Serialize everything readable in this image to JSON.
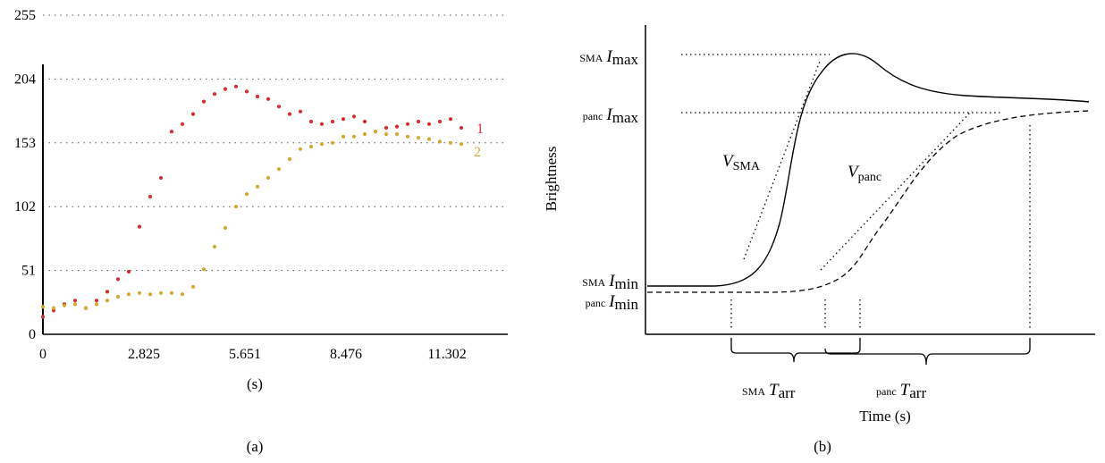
{
  "panel_a": {
    "caption": "(a)",
    "xlabel": "(s)",
    "series_labels": [
      "1",
      "2"
    ]
  },
  "panel_b": {
    "caption": "(b)",
    "xlabel": "Time (s)",
    "ylabel": "Brightness",
    "labels": {
      "sma_imax_sub": "SMA",
      "sma_imax_main": "I",
      "sma_imax_idx": "max",
      "panc_imax_sub": "panc",
      "panc_imax_main": "I",
      "panc_imax_idx": "max",
      "sma_imin_sub": "SMA",
      "sma_imin_main": "I",
      "sma_imin_idx": "min",
      "panc_imin_sub": "panc",
      "panc_imin_main": "I",
      "panc_imin_idx": "min",
      "v_sma_main": "V",
      "v_sma_idx": "SMA",
      "v_panc_main": "V",
      "v_panc_idx": "panc",
      "sma_tarr_sub": "SMA",
      "sma_tarr_main": "T",
      "sma_tarr_idx": "arr",
      "panc_tarr_sub": "panc",
      "panc_tarr_main": "T",
      "panc_tarr_idx": "arr"
    }
  },
  "chart_data": [
    {
      "type": "scatter",
      "title": "",
      "xlabel": "(s)",
      "ylabel": "",
      "xlim": [
        0,
        13.0
      ],
      "ylim": [
        0,
        255
      ],
      "xticks": [
        0,
        2.825,
        5.651,
        8.476,
        11.302
      ],
      "xtick_labels": [
        "0",
        "2.825",
        "5.651",
        "8.476",
        "11.302"
      ],
      "yticks": [
        0,
        51,
        102,
        153,
        204,
        255
      ],
      "ytick_labels": [
        "0",
        "51",
        "102",
        "153",
        "204",
        "255"
      ],
      "grid": "horizontal dotted",
      "colors": {
        "1": "#d32f2f",
        "2": "#d4a933"
      },
      "series": [
        {
          "name": "1",
          "x": [
            0,
            0.3,
            0.6,
            0.9,
            1.2,
            1.5,
            1.8,
            2.1,
            2.4,
            2.7,
            3.0,
            3.3,
            3.6,
            3.9,
            4.2,
            4.5,
            4.8,
            5.1,
            5.4,
            5.7,
            6.0,
            6.3,
            6.6,
            6.9,
            7.2,
            7.5,
            7.8,
            8.1,
            8.4,
            8.7,
            9.0,
            9.3,
            9.6,
            9.9,
            10.2,
            10.5,
            10.8,
            11.1,
            11.4,
            11.7
          ],
          "y": [
            14,
            19,
            24,
            27,
            21,
            27,
            34,
            44,
            50,
            86,
            110,
            125,
            162,
            168,
            176,
            186,
            192,
            196,
            198,
            194,
            190,
            188,
            182,
            176,
            178,
            170,
            168,
            170,
            172,
            174,
            170,
            162,
            165,
            166,
            168,
            170,
            168,
            170,
            172,
            165
          ]
        },
        {
          "name": "2",
          "x": [
            0,
            0.3,
            0.6,
            0.9,
            1.2,
            1.5,
            1.8,
            2.1,
            2.4,
            2.7,
            3.0,
            3.3,
            3.6,
            3.9,
            4.2,
            4.5,
            4.8,
            5.1,
            5.4,
            5.7,
            6.0,
            6.3,
            6.6,
            6.9,
            7.2,
            7.5,
            7.8,
            8.1,
            8.4,
            8.7,
            9.0,
            9.3,
            9.6,
            9.9,
            10.2,
            10.5,
            10.8,
            11.1,
            11.4,
            11.7
          ],
          "y": [
            22,
            21,
            23,
            24,
            21,
            24,
            27,
            30,
            32,
            33,
            32,
            33,
            33,
            32,
            38,
            52,
            70,
            85,
            102,
            112,
            118,
            125,
            132,
            140,
            148,
            150,
            152,
            153,
            158,
            158,
            160,
            162,
            160,
            160,
            158,
            157,
            156,
            154,
            153,
            152
          ]
        }
      ]
    },
    {
      "type": "line",
      "title": "",
      "xlabel": "Time (s)",
      "ylabel": "Brightness",
      "series": [
        {
          "name": "SMA",
          "style": "solid",
          "x": [
            0,
            1,
            2,
            2.4,
            2.8,
            3.2,
            3.6,
            4.0,
            4.4,
            4.8,
            5.2,
            5.6,
            6.0,
            7.0,
            8.0,
            9.0,
            10.0
          ],
          "y": [
            0.1,
            0.1,
            0.12,
            0.2,
            0.45,
            0.75,
            0.92,
            0.98,
            1.0,
            0.97,
            0.9,
            0.85,
            0.82,
            0.78,
            0.76,
            0.74,
            0.73
          ]
        },
        {
          "name": "panc",
          "style": "dashed",
          "x": [
            0,
            1,
            2,
            3,
            3.6,
            4.0,
            4.4,
            5.0,
            5.6,
            6.2,
            7.0,
            8.0,
            9.0,
            10.0
          ],
          "y": [
            0.0,
            0.0,
            0.0,
            0.02,
            0.05,
            0.12,
            0.25,
            0.42,
            0.58,
            0.7,
            0.8,
            0.86,
            0.88,
            0.89
          ]
        }
      ]
    }
  ]
}
